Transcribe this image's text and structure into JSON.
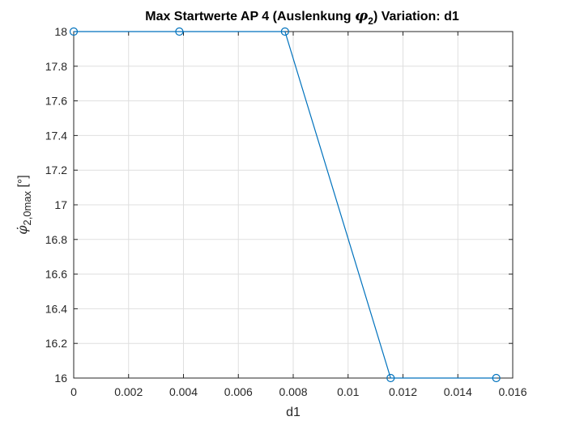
{
  "window": {
    "background": "#ffffff"
  },
  "chart_data": {
    "type": "line",
    "title": {
      "prefix": "Max Startwerte AP 4 (Auslenkung ",
      "symbol": "φ",
      "symbol_subscript": "2",
      "suffix": ")  Variation: d1"
    },
    "xlabel": "d1",
    "ylabel": {
      "symbol": "φ̇",
      "subscript": "2,0max",
      "unit": " [°]"
    },
    "xlim": [
      0,
      0.016
    ],
    "ylim": [
      16,
      18
    ],
    "x_ticks": [
      0,
      0.002,
      0.004,
      0.006,
      0.008,
      0.01,
      0.012,
      0.014,
      0.016
    ],
    "x_tick_labels": [
      "0",
      "0.002",
      "0.004",
      "0.006",
      "0.008",
      "0.01",
      "0.012",
      "0.014",
      "0.016"
    ],
    "y_ticks": [
      16,
      16.2,
      16.4,
      16.6,
      16.8,
      17,
      17.2,
      17.4,
      17.6,
      17.8,
      18
    ],
    "y_tick_labels": [
      "16",
      "16.2",
      "16.4",
      "16.6",
      "16.8",
      "17",
      "17.2",
      "17.4",
      "17.6",
      "17.8",
      "18"
    ],
    "grid": true,
    "marker": "circle",
    "series": [
      {
        "color": "#0072BD",
        "x": [
          0,
          0.00385,
          0.0077,
          0.01155,
          0.0154
        ],
        "y": [
          18,
          18,
          18,
          16,
          16
        ]
      }
    ]
  }
}
